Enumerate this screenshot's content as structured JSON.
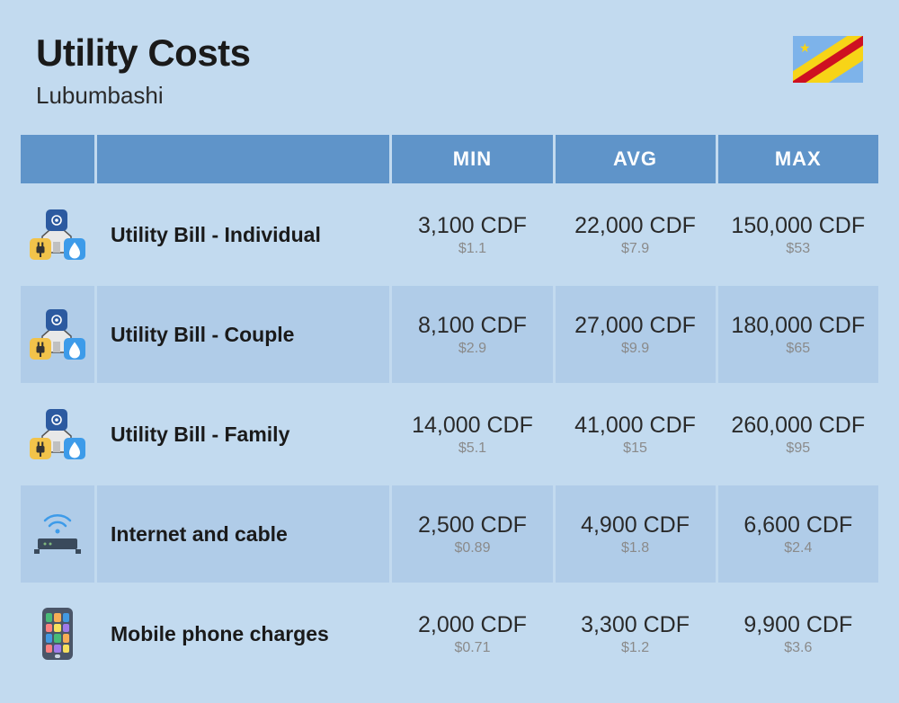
{
  "header": {
    "title": "Utility Costs",
    "subtitle": "Lubumbashi"
  },
  "columns": {
    "min": "MIN",
    "avg": "AVG",
    "max": "MAX"
  },
  "rows": [
    {
      "icon": "utility",
      "label": "Utility Bill - Individual",
      "min": {
        "cdf": "3,100 CDF",
        "usd": "$1.1"
      },
      "avg": {
        "cdf": "22,000 CDF",
        "usd": "$7.9"
      },
      "max": {
        "cdf": "150,000 CDF",
        "usd": "$53"
      }
    },
    {
      "icon": "utility",
      "label": "Utility Bill - Couple",
      "min": {
        "cdf": "8,100 CDF",
        "usd": "$2.9"
      },
      "avg": {
        "cdf": "27,000 CDF",
        "usd": "$9.9"
      },
      "max": {
        "cdf": "180,000 CDF",
        "usd": "$65"
      }
    },
    {
      "icon": "utility",
      "label": "Utility Bill - Family",
      "min": {
        "cdf": "14,000 CDF",
        "usd": "$5.1"
      },
      "avg": {
        "cdf": "41,000 CDF",
        "usd": "$15"
      },
      "max": {
        "cdf": "260,000 CDF",
        "usd": "$95"
      }
    },
    {
      "icon": "router",
      "label": "Internet and cable",
      "min": {
        "cdf": "2,500 CDF",
        "usd": "$0.89"
      },
      "avg": {
        "cdf": "4,900 CDF",
        "usd": "$1.8"
      },
      "max": {
        "cdf": "6,600 CDF",
        "usd": "$2.4"
      }
    },
    {
      "icon": "phone",
      "label": "Mobile phone charges",
      "min": {
        "cdf": "2,000 CDF",
        "usd": "$0.71"
      },
      "avg": {
        "cdf": "3,300 CDF",
        "usd": "$1.2"
      },
      "max": {
        "cdf": "9,900 CDF",
        "usd": "$3.6"
      }
    }
  ],
  "phone_app_colors": [
    "#48bb78",
    "#f6ad55",
    "#4299e1",
    "#fc8181",
    "#f6e05e",
    "#9f7aea",
    "#4299e1",
    "#48bb78",
    "#f6ad55",
    "#fc8181",
    "#9f7aea",
    "#f6e05e"
  ],
  "colors": {
    "page_bg": "#c2daef",
    "header_bg": "#5f94c9",
    "row_odd": "#c2daef",
    "row_even": "#b0cce8",
    "text_main": "#2a2a2a",
    "text_sub": "#8a8a8a"
  }
}
